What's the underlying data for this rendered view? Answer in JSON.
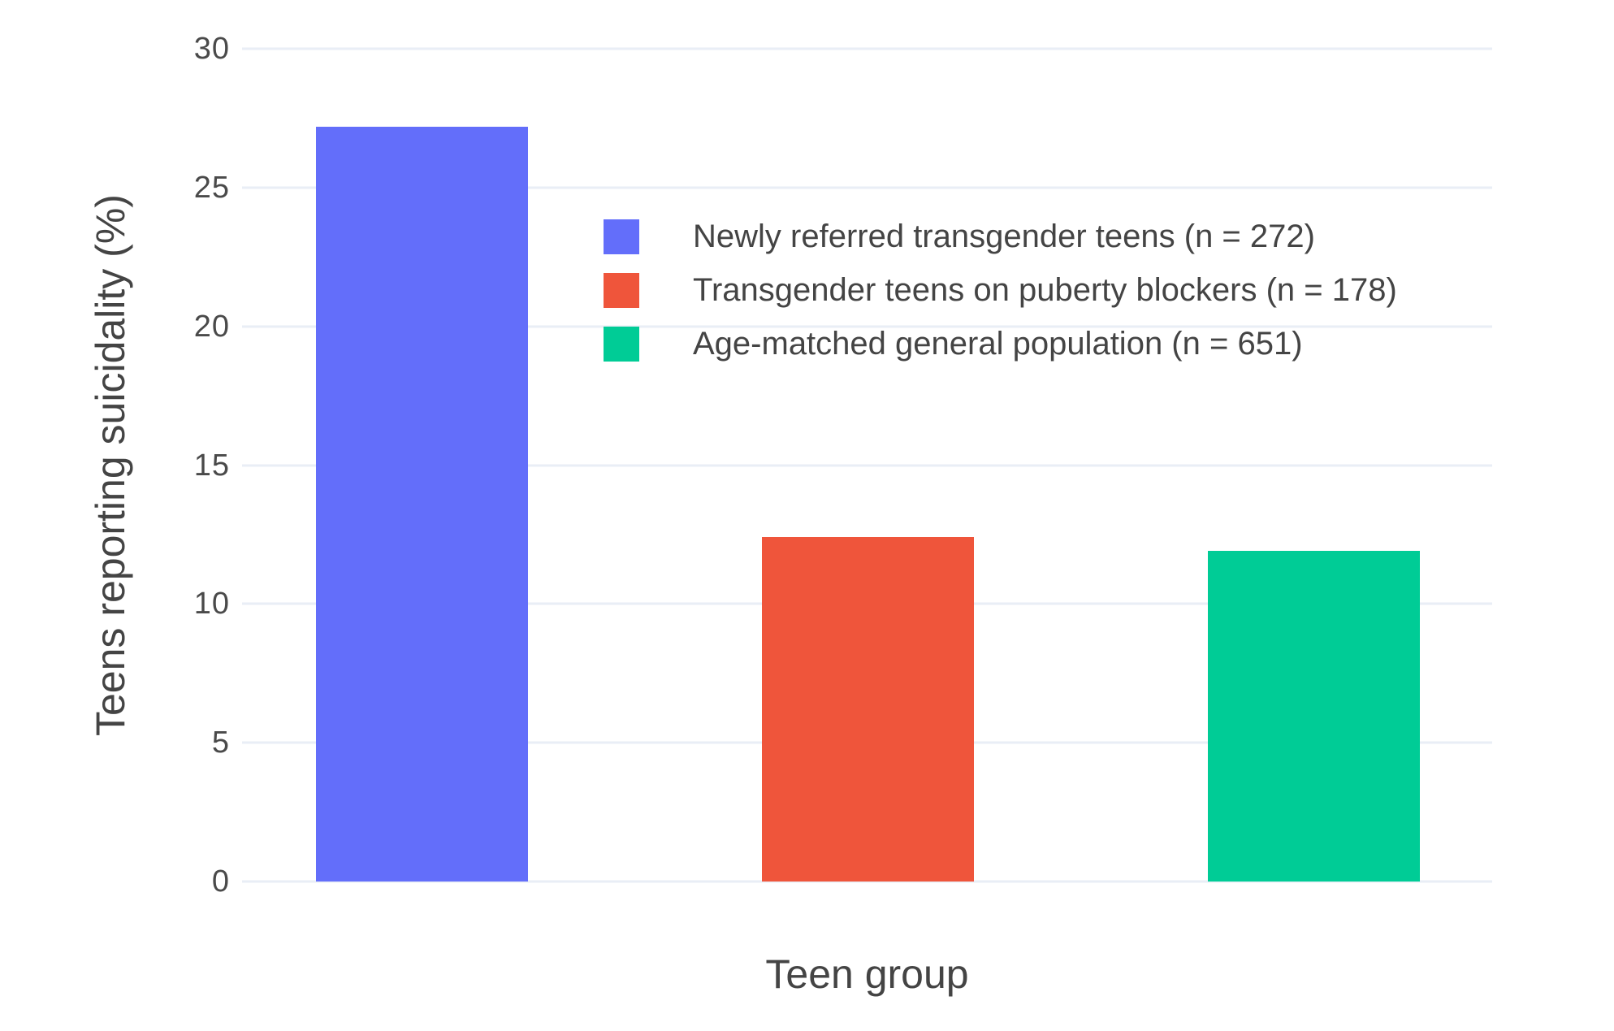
{
  "chart_data": {
    "type": "bar",
    "title": "",
    "xlabel": "Teen group",
    "ylabel": "Teens reporting suicidality (%)",
    "ylim": [
      0,
      30
    ],
    "yticks": [
      0,
      5,
      10,
      15,
      20,
      25,
      30
    ],
    "grid": true,
    "grid_color": "#e9eef6",
    "background": "#ffffff",
    "text_color": "#444444",
    "legend_position": "inside upper-left of plot",
    "bars": [
      {
        "label": "Newly referred transgender teens (n = 272)",
        "value": 27.2,
        "color": "#636efa"
      },
      {
        "label": "Transgender teens on puberty blockers (n = 178)",
        "value": 12.4,
        "color": "#ef553b"
      },
      {
        "label": "Age-matched general population (n = 651)",
        "value": 11.9,
        "color": "#00cc96"
      }
    ]
  }
}
